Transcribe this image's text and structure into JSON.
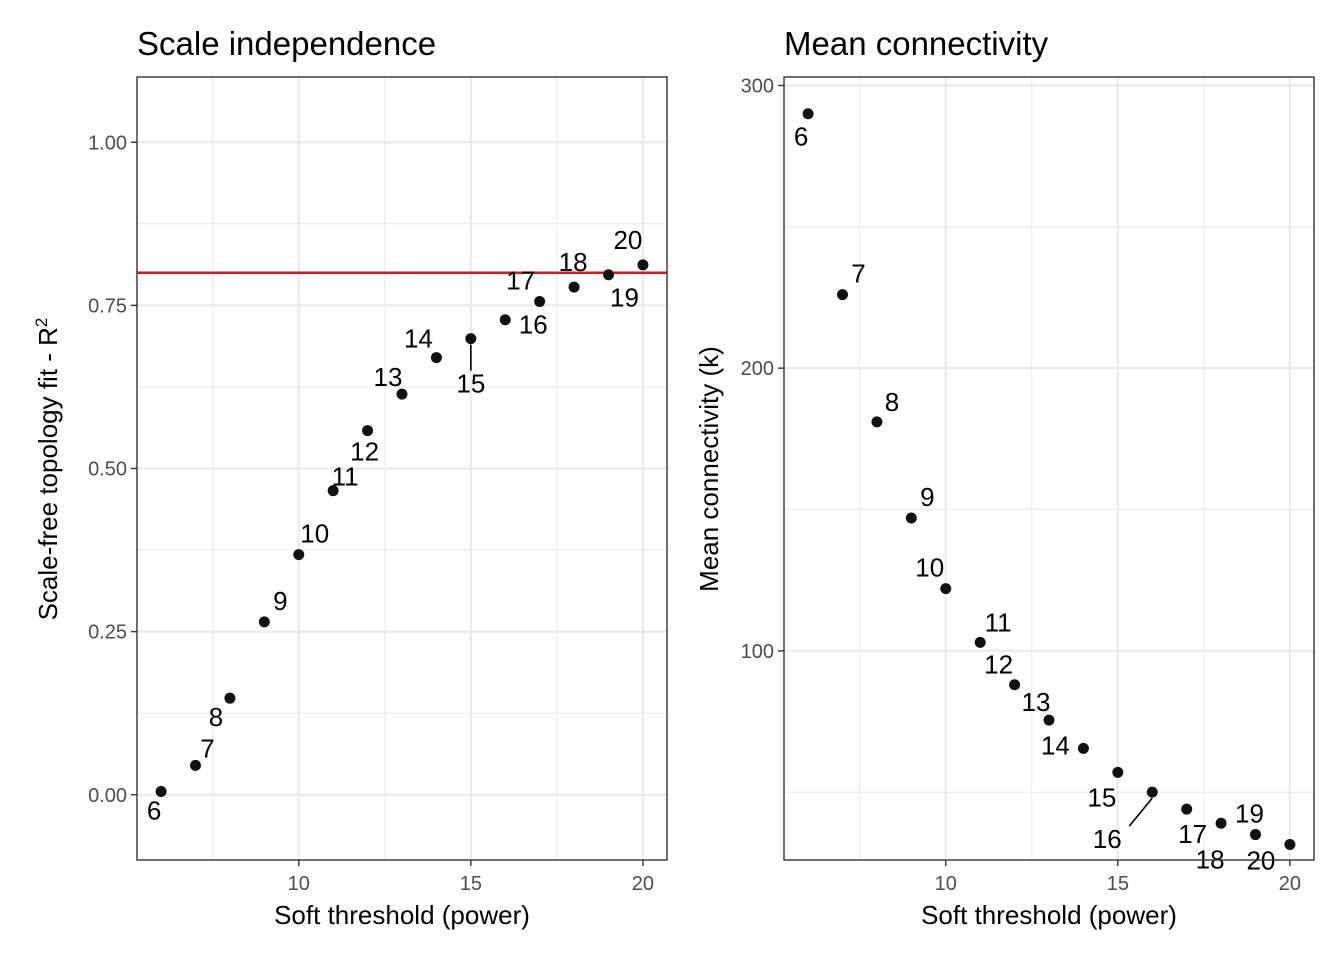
{
  "colors": {
    "threshold_line": "#d7191c",
    "points": "#111111"
  },
  "chart_data": [
    {
      "type": "scatter",
      "title": "Scale independence",
      "xlabel": "Soft threshold (power)",
      "ylabel": "Scale-free topology fit - R",
      "ylabel_superscript": "2",
      "xlim": [
        5.3,
        20.7
      ],
      "ylim": [
        -0.1,
        1.1
      ],
      "xticks": [
        10,
        15,
        20
      ],
      "yticks": [
        0.0,
        0.25,
        0.5,
        0.75,
        1.0
      ],
      "ytick_labels": [
        "0.00",
        "0.25",
        "0.50",
        "0.75",
        "1.00"
      ],
      "hline": 0.8,
      "grid": true,
      "points": [
        {
          "x": 6,
          "y": 0.005,
          "label": "6"
        },
        {
          "x": 7,
          "y": 0.045,
          "label": "7"
        },
        {
          "x": 8,
          "y": 0.148,
          "label": "8"
        },
        {
          "x": 9,
          "y": 0.265,
          "label": "9"
        },
        {
          "x": 10,
          "y": 0.368,
          "label": "10"
        },
        {
          "x": 11,
          "y": 0.466,
          "label": "11"
        },
        {
          "x": 12,
          "y": 0.558,
          "label": "12"
        },
        {
          "x": 13,
          "y": 0.614,
          "label": "13"
        },
        {
          "x": 14,
          "y": 0.67,
          "label": "14"
        },
        {
          "x": 15,
          "y": 0.699,
          "label": "15"
        },
        {
          "x": 16,
          "y": 0.728,
          "label": "16"
        },
        {
          "x": 17,
          "y": 0.756,
          "label": "17"
        },
        {
          "x": 18,
          "y": 0.778,
          "label": "18"
        },
        {
          "x": 19,
          "y": 0.797,
          "label": "19"
        },
        {
          "x": 20,
          "y": 0.812,
          "label": "20"
        }
      ]
    },
    {
      "type": "scatter",
      "title": "Mean connectivity",
      "xlabel": "Soft threshold (power)",
      "ylabel": "Mean connectivity (k)",
      "xlim": [
        5.3,
        20.7
      ],
      "ylim": [
        26,
        303
      ],
      "xticks": [
        10,
        15,
        20
      ],
      "yticks": [
        100,
        200,
        300
      ],
      "ytick_labels": [
        "100",
        "200",
        "300"
      ],
      "grid": true,
      "points": [
        {
          "x": 6,
          "y": 290,
          "label": "6"
        },
        {
          "x": 7,
          "y": 226,
          "label": "7"
        },
        {
          "x": 8,
          "y": 181,
          "label": "8"
        },
        {
          "x": 9,
          "y": 147,
          "label": "9"
        },
        {
          "x": 10,
          "y": 122,
          "label": "10"
        },
        {
          "x": 11,
          "y": 103,
          "label": "11"
        },
        {
          "x": 12,
          "y": 88,
          "label": "12"
        },
        {
          "x": 13,
          "y": 75.5,
          "label": "13"
        },
        {
          "x": 14,
          "y": 65.5,
          "label": "14"
        },
        {
          "x": 15,
          "y": 57,
          "label": "15"
        },
        {
          "x": 16,
          "y": 50,
          "label": "16"
        },
        {
          "x": 17,
          "y": 44,
          "label": "17"
        },
        {
          "x": 18,
          "y": 39,
          "label": "18"
        },
        {
          "x": 19,
          "y": 35,
          "label": "19"
        },
        {
          "x": 20,
          "y": 31.5,
          "label": "20"
        }
      ]
    }
  ]
}
